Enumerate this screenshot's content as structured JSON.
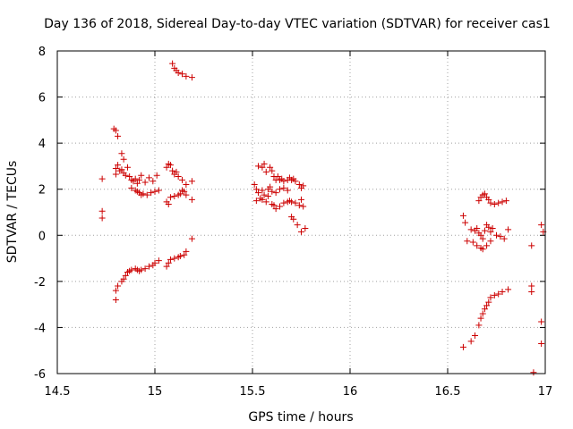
{
  "chart_data": {
    "type": "scatter",
    "title": "Day 136 of 2018, Sidereal Day-to-day VTEC variation (SDTVAR) for receiver cas1",
    "xlabel": "GPS time / hours",
    "ylabel": "SDTVAR / TECUs",
    "xlim": [
      14.5,
      17
    ],
    "ylim": [
      -6,
      8
    ],
    "xticks": [
      14.5,
      15,
      15.5,
      16,
      16.5,
      17
    ],
    "xtick_labels": [
      "14.5",
      "15",
      "15.5",
      "16",
      "16.5",
      "17"
    ],
    "yticks": [
      -6,
      -4,
      -2,
      0,
      2,
      4,
      6,
      8
    ],
    "ytick_labels": [
      "-6",
      "-4",
      "-2",
      "0",
      "2",
      "4",
      "6",
      "8"
    ],
    "grid": true,
    "marker": "+",
    "color": "#cc0000",
    "series": [
      {
        "name": "SDTVAR",
        "points": [
          [
            14.73,
            2.45
          ],
          [
            14.73,
            1.05
          ],
          [
            14.73,
            0.75
          ],
          [
            14.79,
            4.62
          ],
          [
            14.8,
            4.55
          ],
          [
            14.81,
            4.3
          ],
          [
            14.83,
            3.55
          ],
          [
            14.84,
            3.3
          ],
          [
            14.8,
            2.9
          ],
          [
            14.8,
            2.65
          ],
          [
            14.81,
            3.05
          ],
          [
            14.82,
            2.8
          ],
          [
            14.83,
            2.85
          ],
          [
            14.84,
            2.7
          ],
          [
            14.85,
            2.6
          ],
          [
            14.86,
            2.95
          ],
          [
            14.87,
            2.55
          ],
          [
            14.88,
            2.4
          ],
          [
            14.89,
            2.35
          ],
          [
            14.9,
            2.45
          ],
          [
            14.91,
            2.25
          ],
          [
            14.92,
            2.4
          ],
          [
            14.93,
            2.6
          ],
          [
            14.95,
            2.3
          ],
          [
            14.97,
            2.5
          ],
          [
            14.99,
            2.35
          ],
          [
            15.01,
            2.6
          ],
          [
            14.88,
            2.05
          ],
          [
            14.9,
            1.95
          ],
          [
            14.91,
            1.9
          ],
          [
            14.92,
            1.85
          ],
          [
            14.93,
            1.75
          ],
          [
            14.94,
            1.8
          ],
          [
            14.96,
            1.75
          ],
          [
            14.98,
            1.85
          ],
          [
            15.0,
            1.9
          ],
          [
            15.02,
            1.95
          ],
          [
            14.8,
            -2.8
          ],
          [
            14.8,
            -2.4
          ],
          [
            14.81,
            -2.2
          ],
          [
            14.83,
            -2.0
          ],
          [
            14.84,
            -1.9
          ],
          [
            14.85,
            -1.75
          ],
          [
            14.86,
            -1.6
          ],
          [
            14.87,
            -1.55
          ],
          [
            14.88,
            -1.5
          ],
          [
            14.9,
            -1.45
          ],
          [
            14.91,
            -1.5
          ],
          [
            14.92,
            -1.55
          ],
          [
            14.93,
            -1.5
          ],
          [
            14.95,
            -1.45
          ],
          [
            14.97,
            -1.35
          ],
          [
            14.99,
            -1.3
          ],
          [
            15.0,
            -1.2
          ],
          [
            15.02,
            -1.1
          ],
          [
            15.09,
            7.45
          ],
          [
            15.1,
            7.25
          ],
          [
            15.11,
            7.15
          ],
          [
            15.12,
            7.05
          ],
          [
            15.14,
            7.0
          ],
          [
            15.16,
            6.9
          ],
          [
            15.19,
            6.85
          ],
          [
            15.06,
            2.95
          ],
          [
            15.07,
            3.1
          ],
          [
            15.08,
            3.05
          ],
          [
            15.09,
            2.8
          ],
          [
            15.1,
            2.65
          ],
          [
            15.11,
            2.75
          ],
          [
            15.12,
            2.55
          ],
          [
            15.14,
            2.4
          ],
          [
            15.16,
            2.2
          ],
          [
            15.19,
            2.35
          ],
          [
            15.06,
            1.45
          ],
          [
            15.07,
            1.35
          ],
          [
            15.08,
            1.65
          ],
          [
            15.1,
            1.7
          ],
          [
            15.12,
            1.75
          ],
          [
            15.13,
            1.8
          ],
          [
            15.14,
            1.95
          ],
          [
            15.15,
            1.9
          ],
          [
            15.16,
            1.75
          ],
          [
            15.19,
            1.55
          ],
          [
            15.06,
            -1.35
          ],
          [
            15.07,
            -1.2
          ],
          [
            15.08,
            -1.05
          ],
          [
            15.1,
            -1.0
          ],
          [
            15.12,
            -0.95
          ],
          [
            15.13,
            -0.9
          ],
          [
            15.15,
            -0.85
          ],
          [
            15.16,
            -0.7
          ],
          [
            15.19,
            -0.15
          ],
          [
            15.51,
            2.2
          ],
          [
            15.53,
            3.0
          ],
          [
            15.55,
            2.95
          ],
          [
            15.56,
            3.1
          ],
          [
            15.57,
            2.75
          ],
          [
            15.59,
            2.95
          ],
          [
            15.6,
            2.8
          ],
          [
            15.61,
            2.55
          ],
          [
            15.62,
            2.4
          ],
          [
            15.63,
            2.55
          ],
          [
            15.64,
            2.4
          ],
          [
            15.65,
            2.45
          ],
          [
            15.66,
            2.35
          ],
          [
            15.68,
            2.4
          ],
          [
            15.69,
            2.5
          ],
          [
            15.7,
            2.4
          ],
          [
            15.71,
            2.45
          ],
          [
            15.72,
            2.35
          ],
          [
            15.74,
            2.2
          ],
          [
            15.75,
            2.05
          ],
          [
            15.76,
            2.15
          ],
          [
            15.52,
            2.0
          ],
          [
            15.53,
            1.85
          ],
          [
            15.55,
            1.95
          ],
          [
            15.56,
            1.75
          ],
          [
            15.58,
            2.0
          ],
          [
            15.59,
            2.1
          ],
          [
            15.6,
            1.9
          ],
          [
            15.62,
            1.85
          ],
          [
            15.64,
            2.0
          ],
          [
            15.66,
            2.05
          ],
          [
            15.68,
            1.95
          ],
          [
            15.52,
            1.5
          ],
          [
            15.54,
            1.6
          ],
          [
            15.55,
            1.55
          ],
          [
            15.57,
            1.45
          ],
          [
            15.58,
            1.7
          ],
          [
            15.6,
            1.35
          ],
          [
            15.61,
            1.3
          ],
          [
            15.62,
            1.15
          ],
          [
            15.64,
            1.25
          ],
          [
            15.66,
            1.4
          ],
          [
            15.68,
            1.45
          ],
          [
            15.69,
            1.5
          ],
          [
            15.7,
            1.45
          ],
          [
            15.72,
            1.4
          ],
          [
            15.74,
            1.3
          ],
          [
            15.75,
            1.55
          ],
          [
            15.76,
            1.25
          ],
          [
            15.7,
            0.8
          ],
          [
            15.71,
            0.7
          ],
          [
            15.73,
            0.45
          ],
          [
            15.75,
            0.15
          ],
          [
            15.77,
            0.3
          ],
          [
            16.58,
            0.85
          ],
          [
            16.59,
            0.55
          ],
          [
            16.6,
            -0.25
          ],
          [
            16.62,
            0.25
          ],
          [
            16.64,
            0.2
          ],
          [
            16.65,
            0.3
          ],
          [
            16.66,
            0.1
          ],
          [
            16.67,
            0.0
          ],
          [
            16.68,
            -0.15
          ],
          [
            16.69,
            0.2
          ],
          [
            16.7,
            0.45
          ],
          [
            16.71,
            0.35
          ],
          [
            16.72,
            0.15
          ],
          [
            16.73,
            0.3
          ],
          [
            16.75,
            0.0
          ],
          [
            16.77,
            -0.05
          ],
          [
            16.79,
            -0.15
          ],
          [
            16.81,
            0.25
          ],
          [
            16.63,
            -0.3
          ],
          [
            16.65,
            -0.45
          ],
          [
            16.67,
            -0.55
          ],
          [
            16.68,
            -0.6
          ],
          [
            16.7,
            -0.45
          ],
          [
            16.72,
            -0.25
          ],
          [
            16.66,
            1.5
          ],
          [
            16.67,
            1.65
          ],
          [
            16.68,
            1.75
          ],
          [
            16.69,
            1.8
          ],
          [
            16.7,
            1.65
          ],
          [
            16.71,
            1.55
          ],
          [
            16.72,
            1.4
          ],
          [
            16.74,
            1.35
          ],
          [
            16.76,
            1.4
          ],
          [
            16.78,
            1.45
          ],
          [
            16.8,
            1.5
          ],
          [
            16.58,
            -4.85
          ],
          [
            16.62,
            -4.6
          ],
          [
            16.64,
            -4.35
          ],
          [
            16.66,
            -3.9
          ],
          [
            16.67,
            -3.6
          ],
          [
            16.68,
            -3.4
          ],
          [
            16.69,
            -3.2
          ],
          [
            16.7,
            -3.05
          ],
          [
            16.71,
            -2.9
          ],
          [
            16.72,
            -2.7
          ],
          [
            16.74,
            -2.6
          ],
          [
            16.76,
            -2.55
          ],
          [
            16.78,
            -2.45
          ],
          [
            16.81,
            -2.35
          ],
          [
            16.93,
            -0.45
          ],
          [
            16.93,
            -2.2
          ],
          [
            16.93,
            -2.45
          ],
          [
            16.94,
            -5.95
          ],
          [
            16.98,
            -3.75
          ],
          [
            16.98,
            -4.7
          ],
          [
            16.98,
            0.45
          ],
          [
            16.99,
            0.15
          ]
        ]
      }
    ]
  }
}
